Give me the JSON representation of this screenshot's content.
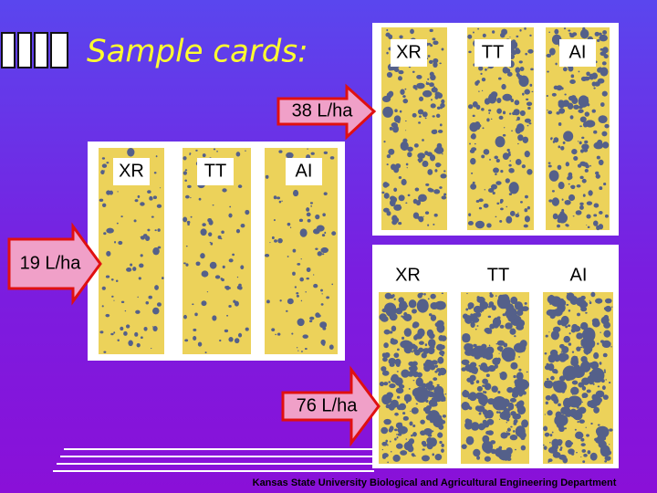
{
  "title": "Sample cards:",
  "panels": [
    {
      "rate": "19 L/ha",
      "cards": [
        "XR",
        "TT",
        "AI"
      ]
    },
    {
      "rate": "38 L/ha",
      "cards": [
        "XR",
        "TT",
        "AI"
      ]
    },
    {
      "rate": "76 L/ha",
      "cards": [
        "XR",
        "TT",
        "AI"
      ]
    }
  ],
  "footer": "Kansas State University Biological and Agricultural Engineering Department"
}
